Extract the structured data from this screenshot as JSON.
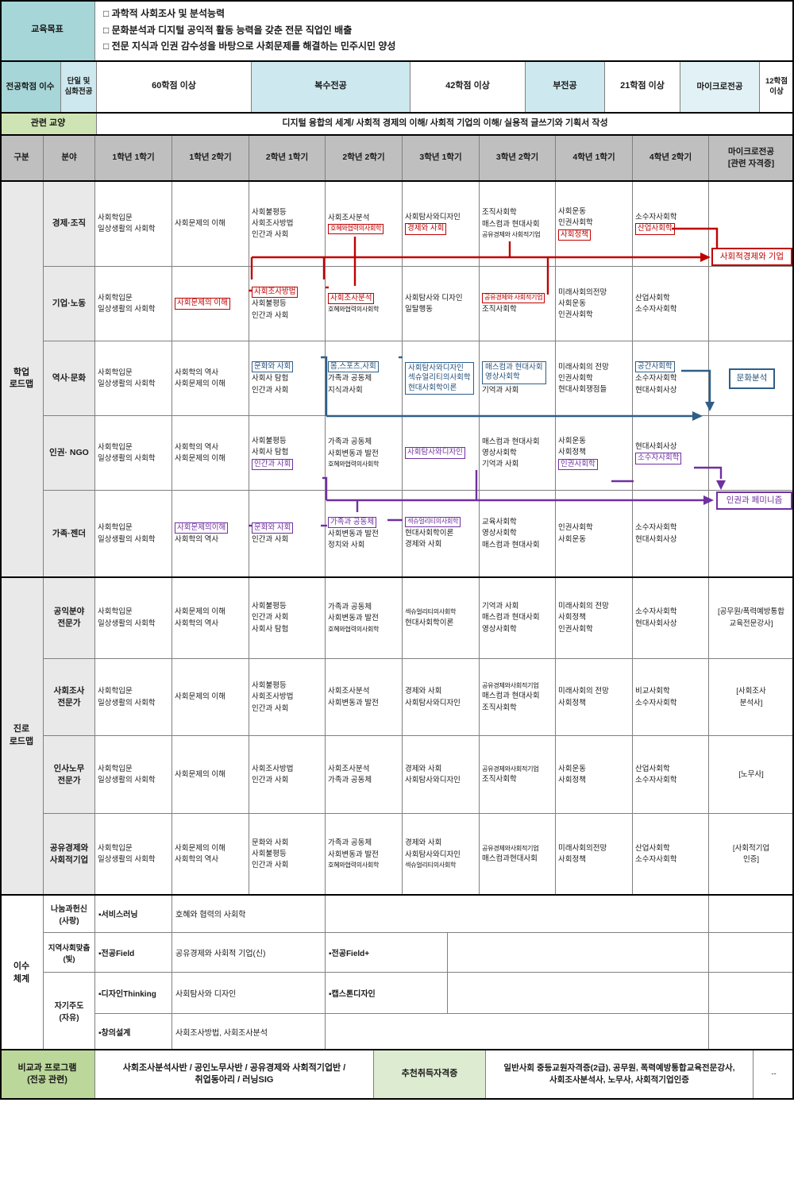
{
  "colors": {
    "red": "#C00000",
    "blue": "#1F4E79",
    "purple": "#7030A0",
    "header_gray": "#BFBFBF",
    "teal": "#A7D6D8",
    "green": "#BCD79A"
  },
  "goals": {
    "label": "교육목표",
    "items": [
      "□ 과학적 사회조사 및 분석능력",
      "□ 문화분석과 디지털 공익적 활동 능력을 갖춘 전문 직업인 배출",
      "□ 전문 지식과 인권 감수성을 바탕으로 사회문제를 해결하는 민주시민 양성"
    ]
  },
  "credits": {
    "label": "전공학점 이수",
    "cells": [
      {
        "text": "단일 및\n심화전공",
        "bg": "lb"
      },
      {
        "text": "60학점 이상",
        "bg": "w"
      },
      {
        "text": "복수전공",
        "bg": "lb"
      },
      {
        "text": "42학점 이상",
        "bg": "w"
      },
      {
        "text": "부전공",
        "bg": "lb"
      },
      {
        "text": "21학점 이상",
        "bg": "w"
      },
      {
        "text": "마이크로전공",
        "bg": "llb"
      },
      {
        "text": "12학점이상",
        "bg": "w"
      }
    ]
  },
  "liberal": {
    "label": "관련 교양",
    "text": "디지털 융합의 세계/ 사회적 경제의 이해/ 사회적 기업의 이해/ 실용적 글쓰기와 기획서 작성"
  },
  "grid_header": {
    "cols": [
      "구분",
      "분야",
      "1학년 1학기",
      "1학년 2학기",
      "2학년 1학기",
      "2학년 2학기",
      "3학년 1학기",
      "3학년 2학기",
      "4학년 1학기",
      "4학년 2학기",
      "마이크로전공\n[관련 자격증]"
    ]
  },
  "sections": [
    {
      "id": "academic",
      "label": "학업\n로드맵",
      "rows": [
        {
          "category": "경제·조직",
          "cells": [
            [
              "사회학입문",
              "일상생활의 사회학"
            ],
            [
              "사회문제의 이해"
            ],
            [
              "사회불평등",
              "사회조사방법",
              "인간과 사회"
            ],
            [
              "사회조사분석",
              {
                "t": "호혜와협력의사회학",
                "hl": "red",
                "small": true
              }
            ],
            [
              "사회탐사와디자인",
              {
                "t": "경제와 사회",
                "hl": "red"
              }
            ],
            [
              "조직사회학",
              "매스컴과 현대사회",
              {
                "t": "공유경제와 사회적기업",
                "small": true
              }
            ],
            [
              "사회운동",
              "인권사회학",
              {
                "t": "사회정책",
                "hl": "red"
              }
            ],
            [
              "소수자사회학",
              {
                "t": "산업사회학",
                "hl": "red"
              }
            ],
            []
          ]
        },
        {
          "category": "기업·노동",
          "cells": [
            [
              "사회학입문",
              "일상생활의 사회학"
            ],
            [
              {
                "t": "사회문제의 이해",
                "hl": "red"
              }
            ],
            [
              {
                "t": "사회조사방법",
                "hl": "red"
              },
              "사회불평등",
              "인간과 사회"
            ],
            [
              {
                "t": "사회조사분석",
                "hl": "red"
              },
              {
                "t": "호혜와협력의사회학",
                "small": true
              }
            ],
            [
              "사회탐사와 디자인",
              "일탈행동"
            ],
            [
              {
                "t": "공유경제와 사회적기업",
                "hl": "red",
                "small": true
              },
              "조직사회학"
            ],
            [
              "미래사회의전망",
              "사회운동",
              "인권사회학"
            ],
            [
              "산업사회학",
              "소수자사회학"
            ],
            []
          ]
        },
        {
          "category": "역사·문화",
          "cells": [
            [
              "사회학입문",
              "일상생활의 사회학"
            ],
            [
              "사회학의 역사",
              "사회문제의 이해"
            ],
            [
              {
                "t": "문화와 사회",
                "hl": "blue"
              },
              "사회사 탐험",
              "인간과 사회"
            ],
            [
              {
                "t": "몸,스포츠,사회",
                "hl": "blue"
              },
              "가족과 공동체",
              "지식과사회"
            ],
            [
              {
                "group": [
                  "사회탐사와디자인",
                  "섹슈얼리티의사회학",
                  "현대사회학이론"
                ],
                "hl": "blue"
              }
            ],
            [
              {
                "group": [
                  "매스컴과 현대사회",
                  "영상사회학"
                ],
                "hl": "blue"
              },
              "기억과 사회"
            ],
            [
              "미래사회의 전망",
              "인권사회학",
              "현대사회쟁점들"
            ],
            [
              {
                "t": "공간사회학",
                "hl": "blue"
              },
              "소수자사회학",
              "현대사회사상"
            ],
            []
          ]
        },
        {
          "category": "인권· NGO",
          "cells": [
            [
              "사회학입문",
              "일상생활의 사회학"
            ],
            [
              "사회학의 역사",
              "사회문제의 이해"
            ],
            [
              "사회불평등",
              "사회사 탐험",
              {
                "t": "인간과 사회",
                "hl": "purple"
              }
            ],
            [
              "가족과 공동체",
              "사회변동과 발전",
              {
                "t": "호혜와협력의사회학",
                "small": true
              }
            ],
            [
              {
                "t": "사회탐사와디자인",
                "hl": "purple"
              }
            ],
            [
              "매스컴과 현대사회",
              "영상사회학",
              "기억과 사회"
            ],
            [
              "사회운동",
              "사회정책",
              {
                "t": "인권사회학",
                "hl": "purple"
              }
            ],
            [
              "현대사회사상",
              {
                "t": "소수자사회학",
                "hl": "purple"
              }
            ],
            []
          ]
        },
        {
          "category": "가족·젠더",
          "cells": [
            [
              "사회학입문",
              "일상생활의 사회학"
            ],
            [
              {
                "t": "사회문제의이해",
                "hl": "purple"
              },
              "사회학의 역사"
            ],
            [
              {
                "t": "문화와 사회",
                "hl": "purple"
              },
              "인간과 사회"
            ],
            [
              {
                "t": "가족과 공동체",
                "hl": "purple"
              },
              "사회변동과 발전",
              "정치와 사회"
            ],
            [
              {
                "t": "섹슈얼리티의사회학",
                "hl": "purple",
                "small": true
              },
              "현대사회학이론",
              "경제와 사회"
            ],
            [
              "교육사회학",
              "영상사회학",
              "매스컴과 현대사회"
            ],
            [
              "인권사회학",
              "사회운동"
            ],
            [
              "소수자사회학",
              "현대사회사상"
            ],
            []
          ]
        }
      ]
    },
    {
      "id": "career",
      "label": "진로\n로드맵",
      "rows": [
        {
          "category": "공익분야\n전문가",
          "cells": [
            [
              "사회학입문",
              "일상생활의 사회학"
            ],
            [
              "사회문제의 이해",
              "사회학의 역사"
            ],
            [
              "사회불평등",
              "인간과 사회",
              "사회사 탐험"
            ],
            [
              "가족과 공동체",
              "사회변동과 발전",
              {
                "t": "호혜와협력의사회학",
                "small": true
              }
            ],
            [
              {
                "t": "섹슈얼리티의사회학",
                "small": true
              },
              "현대사회학이론"
            ],
            [
              "기억과 사회",
              "매스컴과 현대사회",
              "영상사회학"
            ],
            [
              "미래사회의 전망",
              "사회정책",
              "인권사회학"
            ],
            [
              "소수자사회학",
              "현대사회사상"
            ],
            [
              "[공무원/폭력예방통합",
              "교육전문강사]"
            ]
          ]
        },
        {
          "category": "사회조사\n전문가",
          "cells": [
            [
              "사회학입문",
              "일상생활의 사회학"
            ],
            [
              "사회문제의 이해"
            ],
            [
              "사회불평등",
              "사회조사방법",
              "인간과 사회"
            ],
            [
              "사회조사분석",
              "사회변동과 발전"
            ],
            [
              "경제와 사회",
              "사회탐사와디자인"
            ],
            [
              {
                "t": "공유경제와사회적기업",
                "small": true
              },
              "매스컴과 현대사회",
              "조직사회학"
            ],
            [
              "미래사회의 전망",
              "사회정책"
            ],
            [
              "비교사회학",
              "소수자사회학"
            ],
            [
              "[사회조사",
              "분석사]"
            ]
          ]
        },
        {
          "category": "인사노무\n전문가",
          "cells": [
            [
              "사회학입문",
              "일상생활의 사회학"
            ],
            [
              "사회문제의 이해"
            ],
            [
              "사회조사방법",
              "인간과 사회"
            ],
            [
              "사회조사분석",
              "가족과 공동체"
            ],
            [
              "경제와 사회",
              "사회탐사와디자인"
            ],
            [
              {
                "t": "공유경제와사회적기업",
                "small": true
              },
              "조직사회학"
            ],
            [
              "사회운동",
              "사회정책"
            ],
            [
              "산업사회학",
              "소수자사회학"
            ],
            [
              "[노무사]"
            ]
          ]
        },
        {
          "category": "공유경제와\n사회적기업",
          "cells": [
            [
              "사회학입문",
              "일상생활의 사회학"
            ],
            [
              "사회문제의 이해",
              "사회학의 역사"
            ],
            [
              "문화와 사회",
              "사회불평등",
              "인간과 사회"
            ],
            [
              "가족과 공동체",
              "사회변동과 발전",
              {
                "t": "호혜와협력의사회학",
                "small": true
              }
            ],
            [
              "경제와 사회",
              "사회탐사와디자인",
              {
                "t": "섹슈얼리티의사회학",
                "small": true
              }
            ],
            [
              {
                "t": "공유경제와사회적기업",
                "small": true
              },
              "매스컴과현대사회"
            ],
            [
              "미래사회의전망",
              "사회정책"
            ],
            [
              "산업사회학",
              "소수자사회학"
            ],
            [
              "[사회적기업",
              "인증]"
            ]
          ]
        }
      ]
    }
  ],
  "system": {
    "label": "이수\n체계",
    "rows": [
      {
        "category": "나눔과헌신\n(사랑)",
        "tag": "▪서비스러닝",
        "content": "호혜와 협력의 사회학",
        "extra": ""
      },
      {
        "category": "지역사회맞춤\n(빛)",
        "tag": "▪전공Field",
        "content": "공유경제와 사회적 기업(신)",
        "extra": "▪전공Field+"
      },
      {
        "category": "자기주도\n(자유)",
        "tag": "▪디자인Thinking",
        "content": "사회탐사와 디자인",
        "extra": "▪캡스톤디자인"
      },
      {
        "category": "",
        "tag": "▪창의설계",
        "content": "사회조사방법, 사회조사분석",
        "extra": ""
      }
    ]
  },
  "extracurricular": {
    "label": "비교과 프로그램\n(전공 관련)",
    "programs": "사회조사분석사반 / 공인노무사반 / 공유경제와 사회적기업반 /\n취업동아리 / 러닝SIG",
    "cert_label": "추천취득자격증",
    "certs": "일반사회 중등교원자격증(2급), 공무원, 폭력예방통합교육전문강사,\n사회조사분석사, 노무사, 사회적기업인증",
    "last": "--"
  },
  "micro_links": [
    {
      "label": "사회적경제와 기업",
      "color": "red"
    },
    {
      "label": "문화분석",
      "color": "blue"
    },
    {
      "label": "인권과 페미니즘",
      "color": "purple"
    }
  ]
}
